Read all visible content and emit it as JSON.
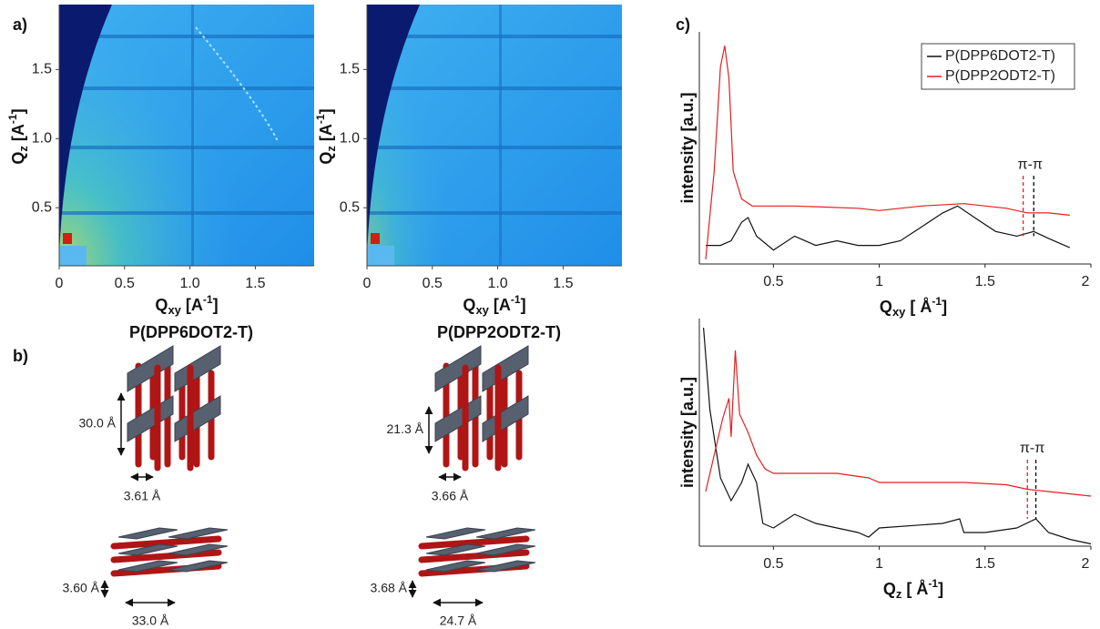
{
  "figure": {
    "panel_labels": [
      "a)",
      "b)",
      "c)"
    ],
    "giwaxs": [
      {
        "xlim": [
          0,
          1.95
        ],
        "ylim": [
          0.08,
          1.97
        ],
        "xticks": [
          0,
          0.5,
          {
            "value": 1,
            "label": "1.0"
          },
          1.5
        ],
        "yticks": [
          0.5,
          {
            "value": 1,
            "label": "1.0"
          },
          1.5
        ]
      },
      {
        "xlim": [
          0,
          1.95
        ],
        "ylim": [
          0.08,
          1.97
        ],
        "xticks": [
          0,
          0.5,
          {
            "value": 1,
            "label": "1.0"
          },
          1.5
        ],
        "yticks": [
          0.5,
          {
            "value": 1,
            "label": "1.0"
          },
          1.5
        ]
      }
    ],
    "giwaxs_xlabel": {
      "main": "Q",
      "sub": "xy",
      "unit": " [A",
      "sup": "-1",
      "close": "]"
    },
    "giwaxs_ylabel": {
      "main": "Q",
      "sub": "z",
      "unit": " [A",
      "sup": "-1",
      "close": "]"
    },
    "structures": [
      {
        "title": "P(DPP6DOT2-T)",
        "lamellar": "30.0 Å",
        "stack_top": "3.61 Å",
        "stack_side": "3.60 Å",
        "width": "33.0 Å"
      },
      {
        "title": "P(DPP2ODT2-T)",
        "lamellar": "21.3 Å",
        "stack_top": "3.66 Å",
        "stack_side": "3.68 Å",
        "width": "24.7 Å"
      }
    ]
  },
  "chart_data": [
    {
      "type": "line",
      "xlim": [
        0.15,
        2.0
      ],
      "ylim": [
        0,
        100
      ],
      "xticks": [
        0.5,
        1,
        1.5,
        2
      ],
      "xlabel": {
        "main": "Q",
        "sub": "xy",
        "unit": " [ Å",
        "sup": "-1",
        "close": "]"
      },
      "ylabel": "intensity [a.u.]",
      "annotation": "π-π",
      "markers": [
        {
          "x": 1.68,
          "color": "#e02020"
        },
        {
          "x": 1.73,
          "color": "#000000"
        }
      ],
      "series": [
        {
          "name": "P(DPP6DOT2-T)",
          "color": "#111111",
          "x": [
            0.18,
            0.25,
            0.3,
            0.35,
            0.38,
            0.42,
            0.5,
            0.6,
            0.7,
            0.8,
            0.9,
            1.0,
            1.1,
            1.2,
            1.3,
            1.37,
            1.45,
            1.55,
            1.65,
            1.73,
            1.8,
            1.9
          ],
          "values": [
            8,
            8,
            10,
            18,
            20,
            12,
            6,
            12,
            8,
            10,
            8,
            8,
            10,
            16,
            22,
            25,
            20,
            14,
            12,
            14,
            11,
            7
          ]
        },
        {
          "name": "P(DPP2ODT2-T)",
          "color": "#e02020",
          "x": [
            0.18,
            0.22,
            0.25,
            0.27,
            0.29,
            0.31,
            0.35,
            0.4,
            0.6,
            0.9,
            1.0,
            1.2,
            1.4,
            1.6,
            1.7,
            1.8,
            1.9
          ],
          "values": [
            2,
            40,
            85,
            94,
            80,
            40,
            28,
            25,
            25,
            24,
            23,
            25,
            26,
            24,
            22,
            22,
            21
          ]
        }
      ]
    },
    {
      "type": "line",
      "xlim": [
        0.15,
        2.0
      ],
      "ylim": [
        0,
        100
      ],
      "xticks": [
        0.5,
        1,
        1.5,
        2
      ],
      "xlabel": {
        "main": "Q",
        "sub": "z",
        "unit": " [ Å",
        "sup": "-1",
        "close": "]"
      },
      "ylabel": "intensity [a.u.]",
      "annotation": "π-π",
      "markers": [
        {
          "x": 1.7,
          "color": "#e02020"
        },
        {
          "x": 1.74,
          "color": "#000000"
        }
      ],
      "series": [
        {
          "color": "#111111",
          "x": [
            0.17,
            0.2,
            0.25,
            0.3,
            0.35,
            0.38,
            0.42,
            0.45,
            0.5,
            0.6,
            0.7,
            0.9,
            0.95,
            1.0,
            1.3,
            1.38,
            1.4,
            1.5,
            1.65,
            1.74,
            1.8,
            1.9,
            2.0
          ],
          "values": [
            96,
            60,
            30,
            20,
            28,
            36,
            28,
            10,
            8,
            14,
            10,
            6,
            4,
            8,
            10,
            12,
            6,
            6,
            8,
            12,
            6,
            3,
            1
          ]
        },
        {
          "color": "#e02020",
          "x": [
            0.18,
            0.22,
            0.26,
            0.29,
            0.3,
            0.32,
            0.34,
            0.38,
            0.42,
            0.46,
            0.5,
            0.8,
            0.95,
            1.0,
            1.4,
            1.6,
            1.7,
            1.8,
            2.0
          ],
          "values": [
            24,
            40,
            56,
            65,
            48,
            86,
            58,
            50,
            40,
            34,
            32,
            32,
            30,
            28,
            28,
            27,
            25,
            24,
            22
          ]
        }
      ]
    }
  ]
}
